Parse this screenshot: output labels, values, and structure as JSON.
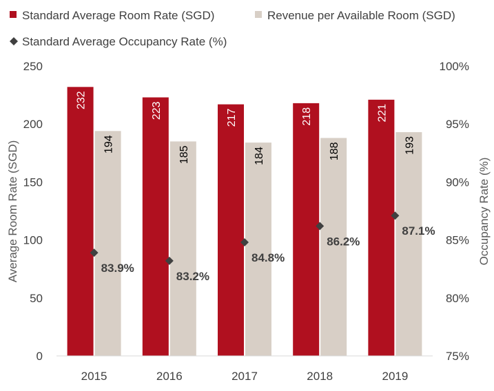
{
  "chart_data": {
    "type": "bar",
    "categories": [
      "2015",
      "2016",
      "2017",
      "2018",
      "2019"
    ],
    "series": [
      {
        "name": "Standard Average Room Rate (SGD)",
        "type": "bar",
        "axis": "left",
        "color": "#b0101f",
        "label_color": "#ffffff",
        "values": [
          232,
          223,
          217,
          218,
          221
        ],
        "labels": [
          "232",
          "223",
          "217",
          "218",
          "221"
        ]
      },
      {
        "name": "Revenue per Available Room (SGD)",
        "type": "bar",
        "axis": "left",
        "color": "#d8cfc6",
        "label_color": "#000000",
        "values": [
          194,
          185,
          184,
          188,
          193
        ],
        "labels": [
          "194",
          "185",
          "184",
          "188",
          "193"
        ]
      },
      {
        "name": "Standard Average Occupancy Rate (%)",
        "type": "scatter",
        "axis": "right",
        "marker": "diamond",
        "color": "#404040",
        "values": [
          83.9,
          83.2,
          84.8,
          86.2,
          87.1
        ],
        "labels": [
          "83.9%",
          "83.2%",
          "84.8%",
          "86.2%",
          "87.1%"
        ]
      }
    ],
    "ylabel": "Average Room Rate (SGD)",
    "y2label": "Occupancy Rate (%)",
    "ylim": [
      0,
      250
    ],
    "y2lim": [
      75,
      100
    ],
    "yticks": [
      "0",
      "50",
      "100",
      "150",
      "200",
      "250"
    ],
    "y2ticks": [
      "75%",
      "80%",
      "85%",
      "90%",
      "95%",
      "100%"
    ],
    "grid": false,
    "legend_position": "top"
  }
}
